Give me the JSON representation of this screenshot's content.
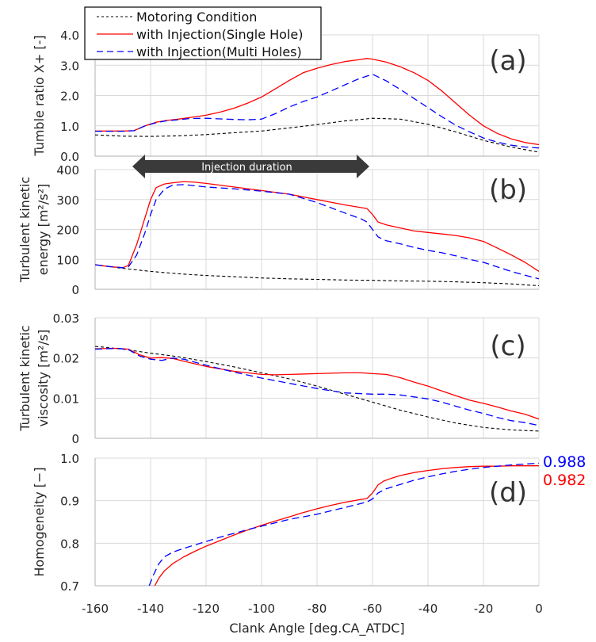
{
  "chart_data": {
    "type": "line",
    "xlabel": "Clank Angle [deg.CA_ATDC]",
    "xlim": [
      -160,
      0
    ],
    "xticks": [
      -160,
      -140,
      -120,
      -100,
      -80,
      -60,
      -40,
      -20,
      0
    ],
    "xtick_labels": [
      "-160",
      "-140",
      "-120",
      "-100",
      "-80",
      "-60",
      "-40",
      "-20",
      "0"
    ],
    "grid": true,
    "legend": {
      "placement": "top-left",
      "entries": [
        {
          "key": "motoring",
          "label": "Motoring Condition",
          "color": "#000000",
          "style": "dotted"
        },
        {
          "key": "single",
          "label": "with Injection(Single Hole)",
          "color": "#ff0000",
          "style": "solid"
        },
        {
          "key": "multi",
          "label": "with Injection(Multi Holes)",
          "color": "#0000ff",
          "style": "dashed"
        }
      ]
    },
    "annotation": {
      "label": "Injection duration",
      "x_start": -146,
      "x_end": -60
    },
    "panels": [
      {
        "id": "a",
        "panel_label": "(a)",
        "ylabel": [
          "Tumble ratio X+ [-]"
        ],
        "ylim": [
          0,
          4
        ],
        "yticks": [
          0,
          1,
          2,
          3,
          4
        ],
        "ytick_labels": [
          "0.0",
          "1.0",
          "2.0",
          "3.0",
          "4.0"
        ],
        "series": [
          {
            "key": "motoring",
            "x": [
              -160,
              -150,
              -140,
              -130,
              -120,
              -110,
              -100,
              -90,
              -80,
              -70,
              -60,
              -50,
              -40,
              -30,
              -20,
              -10,
              0
            ],
            "y": [
              0.7,
              0.66,
              0.65,
              0.67,
              0.71,
              0.77,
              0.83,
              0.93,
              1.04,
              1.16,
              1.25,
              1.22,
              1.05,
              0.8,
              0.52,
              0.3,
              0.13
            ]
          },
          {
            "key": "single",
            "x": [
              -160,
              -150,
              -146,
              -142,
              -138,
              -134,
              -130,
              -126,
              -120,
              -115,
              -110,
              -105,
              -100,
              -95,
              -90,
              -85,
              -80,
              -75,
              -70,
              -65,
              -62,
              -60,
              -55,
              -50,
              -45,
              -40,
              -35,
              -30,
              -25,
              -20,
              -15,
              -10,
              -5,
              0
            ],
            "y": [
              0.83,
              0.83,
              0.84,
              1.0,
              1.12,
              1.18,
              1.22,
              1.27,
              1.35,
              1.45,
              1.58,
              1.75,
              1.95,
              2.22,
              2.5,
              2.75,
              2.9,
              3.02,
              3.12,
              3.18,
              3.22,
              3.2,
              3.1,
              2.95,
              2.75,
              2.5,
              2.15,
              1.75,
              1.35,
              1.0,
              0.75,
              0.57,
              0.45,
              0.38
            ]
          },
          {
            "key": "multi",
            "x": [
              -160,
              -150,
              -146,
              -142,
              -138,
              -134,
              -130,
              -126,
              -120,
              -115,
              -110,
              -105,
              -100,
              -95,
              -90,
              -85,
              -80,
              -75,
              -70,
              -65,
              -60,
              -55,
              -50,
              -45,
              -40,
              -35,
              -30,
              -25,
              -20,
              -15,
              -10,
              -5,
              0
            ],
            "y": [
              0.82,
              0.82,
              0.84,
              1.0,
              1.1,
              1.17,
              1.2,
              1.24,
              1.25,
              1.23,
              1.21,
              1.2,
              1.22,
              1.4,
              1.62,
              1.8,
              1.95,
              2.15,
              2.35,
              2.55,
              2.7,
              2.48,
              2.2,
              1.9,
              1.6,
              1.3,
              1.02,
              0.8,
              0.6,
              0.46,
              0.36,
              0.3,
              0.27
            ]
          }
        ]
      },
      {
        "id": "b",
        "panel_label": "(b)",
        "ylabel": [
          "Turbulent kinetic",
          "energy [m²/s²]"
        ],
        "ylim": [
          0,
          400
        ],
        "yticks": [
          0,
          100,
          200,
          300,
          400
        ],
        "ytick_labels": [
          "0",
          "100",
          "200",
          "300",
          "400"
        ],
        "series": [
          {
            "key": "motoring",
            "x": [
              -160,
              -150,
              -140,
              -130,
              -120,
              -110,
              -100,
              -90,
              -80,
              -70,
              -60,
              -50,
              -40,
              -30,
              -20,
              -10,
              0
            ],
            "y": [
              82,
              70,
              60,
              52,
              46,
              42,
              38,
              35,
              33,
              31,
              30,
              28,
              27,
              25,
              22,
              18,
              12
            ]
          },
          {
            "key": "single",
            "x": [
              -160,
              -155,
              -150,
              -148,
              -145,
              -142,
              -140,
              -138,
              -135,
              -132,
              -128,
              -124,
              -120,
              -110,
              -100,
              -90,
              -80,
              -70,
              -62,
              -60,
              -58,
              -55,
              -50,
              -45,
              -40,
              -35,
              -30,
              -25,
              -20,
              -15,
              -10,
              -5,
              0
            ],
            "y": [
              82,
              76,
              72,
              80,
              150,
              240,
              300,
              340,
              352,
              356,
              360,
              358,
              354,
              342,
              330,
              318,
              300,
              282,
              270,
              250,
              225,
              215,
              205,
              195,
              190,
              185,
              180,
              172,
              160,
              138,
              115,
              90,
              60
            ]
          },
          {
            "key": "multi",
            "x": [
              -160,
              -155,
              -150,
              -148,
              -145,
              -142,
              -140,
              -138,
              -135,
              -132,
              -128,
              -124,
              -120,
              -110,
              -100,
              -90,
              -80,
              -70,
              -64,
              -62,
              -60,
              -58,
              -55,
              -50,
              -45,
              -40,
              -35,
              -30,
              -25,
              -20,
              -15,
              -10,
              -5,
              0
            ],
            "y": [
              82,
              76,
              72,
              75,
              115,
              190,
              250,
              300,
              335,
              348,
              350,
              346,
              342,
              336,
              328,
              318,
              290,
              255,
              235,
              225,
              200,
              175,
              162,
              152,
              140,
              130,
              122,
              112,
              100,
              90,
              75,
              60,
              47,
              35
            ]
          }
        ]
      },
      {
        "id": "c",
        "panel_label": "(c)",
        "ylabel": [
          "Turbulent kinetic",
          "viscosity [m²/s]"
        ],
        "ylim": [
          0,
          0.03
        ],
        "yticks": [
          0,
          0.01,
          0.02,
          0.03
        ],
        "ytick_labels": [
          "0",
          "0.01",
          "0.02",
          "0.03"
        ],
        "series": [
          {
            "key": "motoring",
            "x": [
              -160,
              -150,
              -140,
              -130,
              -120,
              -110,
              -100,
              -90,
              -80,
              -70,
              -60,
              -50,
              -40,
              -30,
              -20,
              -10,
              0
            ],
            "y": [
              0.0229,
              0.0222,
              0.0212,
              0.0203,
              0.0191,
              0.0178,
              0.0163,
              0.0148,
              0.013,
              0.011,
              0.009,
              0.007,
              0.0053,
              0.0038,
              0.0027,
              0.0021,
              0.0018
            ]
          },
          {
            "key": "single",
            "x": [
              -160,
              -152,
              -148,
              -144,
              -140,
              -136,
              -132,
              -128,
              -120,
              -110,
              -100,
              -95,
              -90,
              -80,
              -70,
              -64,
              -60,
              -55,
              -50,
              -45,
              -40,
              -35,
              -30,
              -25,
              -20,
              -15,
              -10,
              -5,
              0
            ],
            "y": [
              0.0223,
              0.0224,
              0.0222,
              0.0208,
              0.02,
              0.0201,
              0.0199,
              0.0192,
              0.0179,
              0.0167,
              0.0159,
              0.0158,
              0.0159,
              0.0161,
              0.0163,
              0.0163,
              0.0161,
              0.0159,
              0.0151,
              0.014,
              0.013,
              0.0118,
              0.0106,
              0.0095,
              0.0087,
              0.0078,
              0.0068,
              0.006,
              0.0048
            ]
          },
          {
            "key": "multi",
            "x": [
              -160,
              -152,
              -148,
              -144,
              -140,
              -136,
              -132,
              -128,
              -120,
              -110,
              -100,
              -90,
              -80,
              -70,
              -60,
              -55,
              -50,
              -45,
              -40,
              -35,
              -30,
              -25,
              -20,
              -15,
              -10,
              -5,
              0
            ],
            "y": [
              0.0222,
              0.0224,
              0.0221,
              0.0205,
              0.0197,
              0.0194,
              0.02,
              0.0197,
              0.0182,
              0.0165,
              0.015,
              0.0137,
              0.0124,
              0.0113,
              0.011,
              0.011,
              0.0108,
              0.0103,
              0.0098,
              0.009,
              0.008,
              0.007,
              0.0062,
              0.0052,
              0.0044,
              0.0039,
              0.0032
            ]
          }
        ]
      },
      {
        "id": "d",
        "panel_label": "(d)",
        "ylabel": [
          "Homogeneity [−]"
        ],
        "ylim": [
          0.7,
          1.0
        ],
        "yticks": [
          0.7,
          0.8,
          0.9,
          1.0
        ],
        "ytick_labels": [
          "0.7",
          "0.8",
          "0.9",
          "1.0"
        ],
        "end_values": [
          {
            "key": "multi",
            "label": "0.988",
            "color": "#0000ff"
          },
          {
            "key": "single",
            "label": "0.982",
            "color": "#ff0000"
          }
        ],
        "series": [
          {
            "key": "single",
            "x": [
              -138.5,
              -137,
              -135,
              -132,
              -128,
              -124,
              -120,
              -115,
              -110,
              -105,
              -100,
              -95,
              -90,
              -85,
              -80,
              -75,
              -70,
              -65,
              -62,
              -60,
              -58,
              -56,
              -53,
              -50,
              -45,
              -40,
              -35,
              -30,
              -25,
              -20,
              -15,
              -10,
              -5,
              0
            ],
            "y": [
              0.7,
              0.718,
              0.735,
              0.752,
              0.768,
              0.781,
              0.793,
              0.806,
              0.819,
              0.831,
              0.842,
              0.852,
              0.862,
              0.872,
              0.881,
              0.889,
              0.896,
              0.902,
              0.905,
              0.918,
              0.937,
              0.946,
              0.953,
              0.959,
              0.966,
              0.971,
              0.975,
              0.978,
              0.98,
              0.981,
              0.981,
              0.982,
              0.982,
              0.982
            ]
          },
          {
            "key": "multi",
            "x": [
              -140.5,
              -139,
              -137,
              -135,
              -132,
              -128,
              -124,
              -120,
              -115,
              -110,
              -105,
              -100,
              -95,
              -90,
              -85,
              -80,
              -75,
              -70,
              -65,
              -62,
              -60,
              -58,
              -55,
              -50,
              -45,
              -40,
              -35,
              -30,
              -25,
              -20,
              -15,
              -10,
              -5,
              0
            ],
            "y": [
              0.7,
              0.725,
              0.752,
              0.768,
              0.779,
              0.788,
              0.796,
              0.804,
              0.814,
              0.823,
              0.832,
              0.84,
              0.848,
              0.856,
              0.862,
              0.868,
              0.876,
              0.884,
              0.892,
              0.897,
              0.904,
              0.918,
              0.928,
              0.938,
              0.948,
              0.956,
              0.963,
              0.969,
              0.974,
              0.978,
              0.981,
              0.984,
              0.986,
              0.988
            ]
          }
        ]
      }
    ]
  }
}
